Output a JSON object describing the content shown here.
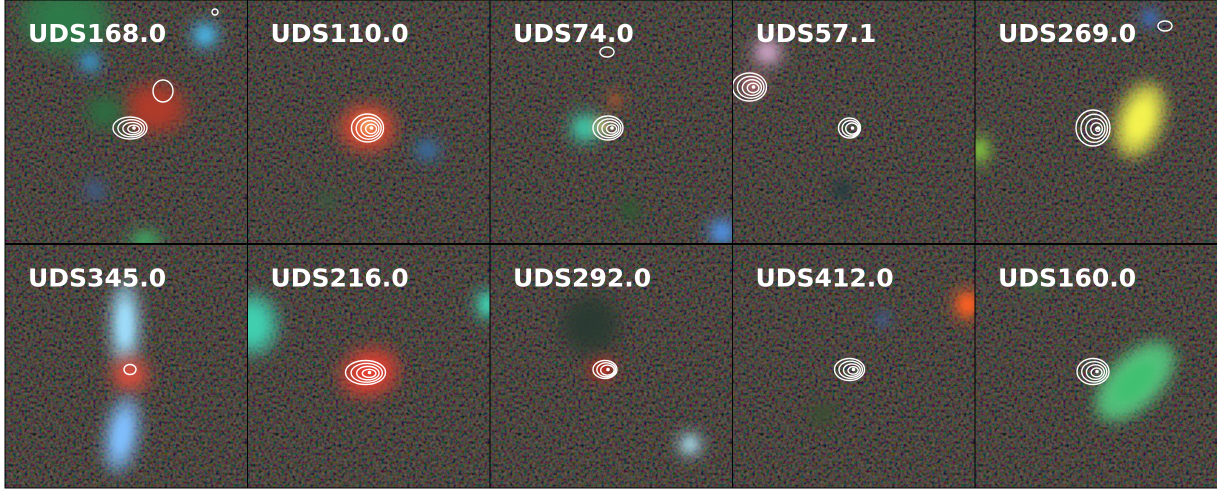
{
  "panels": [
    "UDS168.0",
    "UDS110.0",
    "UDS74.0",
    "UDS57.1",
    "UDS269.0",
    "UDS345.0",
    "UDS216.0",
    "UDS292.0",
    "UDS412.0",
    "UDS160.0"
  ]
}
